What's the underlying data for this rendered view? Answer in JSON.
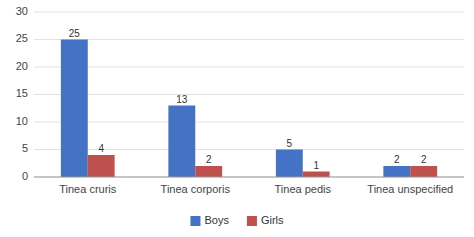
{
  "chart_data": {
    "type": "bar",
    "categories": [
      "Tinea cruris",
      "Tinea corporis",
      "Tinea pedis",
      "Tinea unspecified"
    ],
    "series": [
      {
        "name": "Boys",
        "color": "#4472c4",
        "values": [
          25,
          13,
          5,
          2
        ]
      },
      {
        "name": "Girls",
        "color": "#c0504d",
        "values": [
          4,
          2,
          1,
          2
        ]
      }
    ],
    "ylim": [
      0,
      30
    ],
    "yticks": [
      0,
      5,
      10,
      15,
      20,
      25,
      30
    ],
    "grid": true,
    "legend": "bottom",
    "data_labels": true
  }
}
